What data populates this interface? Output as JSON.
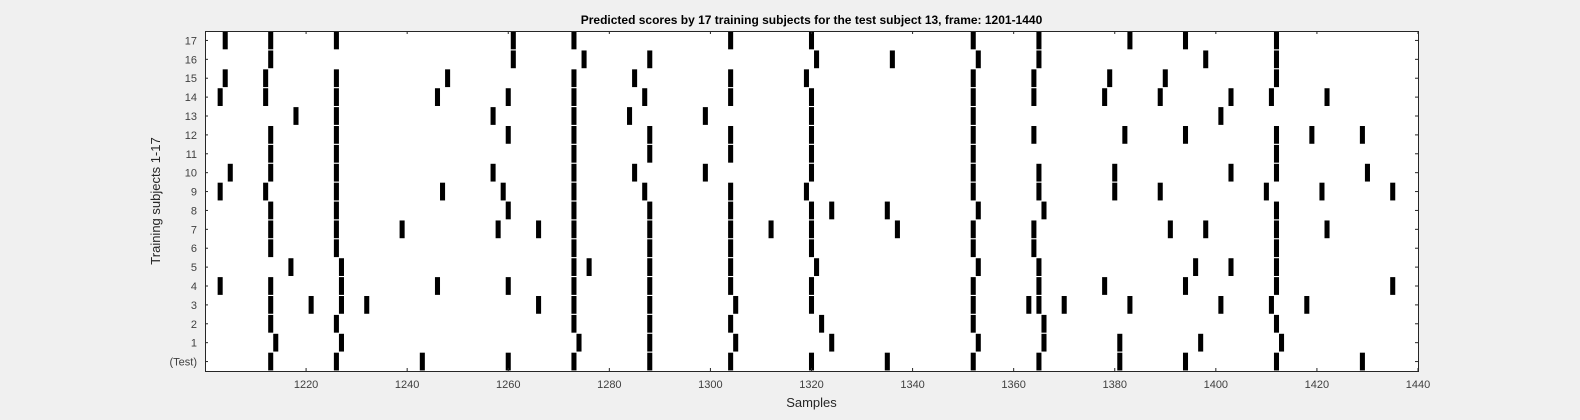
{
  "chart_data": {
    "type": "heatmap",
    "title": "Predicted scores by 17 training subjects for the test subject 13, frame: 1201-1440",
    "xlabel": "Samples",
    "ylabel": "Training subjects 1-17",
    "xlim": [
      1200,
      1440
    ],
    "x_ticks": [
      1220,
      1240,
      1260,
      1280,
      1300,
      1320,
      1340,
      1360,
      1380,
      1400,
      1420,
      1440
    ],
    "y_ticks": [
      "(Test)",
      "1",
      "2",
      "3",
      "4",
      "5",
      "6",
      "7",
      "8",
      "9",
      "10",
      "11",
      "12",
      "13",
      "14",
      "15",
      "16",
      "17"
    ],
    "grid": false,
    "colors": {
      "mark": "#000000",
      "background": "#ffffff",
      "figure": "#f0f0f0"
    },
    "rows": [
      {
        "label": "17",
        "x": [
          1204,
          1213,
          1226,
          1261,
          1273,
          1304,
          1320,
          1352,
          1365,
          1383,
          1394,
          1412
        ]
      },
      {
        "label": "16",
        "x": [
          1213,
          1261,
          1275,
          1288,
          1321,
          1336,
          1353,
          1365,
          1398,
          1412
        ]
      },
      {
        "label": "15",
        "x": [
          1204,
          1212,
          1226,
          1248,
          1273,
          1285,
          1304,
          1319,
          1352,
          1364,
          1379,
          1390,
          1412
        ]
      },
      {
        "label": "14",
        "x": [
          1203,
          1212,
          1226,
          1246,
          1260,
          1273,
          1287,
          1304,
          1320,
          1352,
          1364,
          1378,
          1389,
          1403,
          1411,
          1422
        ]
      },
      {
        "label": "13",
        "x": [
          1218,
          1226,
          1257,
          1273,
          1284,
          1299,
          1320,
          1352,
          1401
        ]
      },
      {
        "label": "12",
        "x": [
          1213,
          1226,
          1260,
          1273,
          1288,
          1304,
          1320,
          1352,
          1364,
          1382,
          1394,
          1412,
          1419,
          1429
        ]
      },
      {
        "label": "11",
        "x": [
          1213,
          1226,
          1273,
          1288,
          1304,
          1320,
          1352,
          1412
        ]
      },
      {
        "label": "10",
        "x": [
          1205,
          1213,
          1226,
          1257,
          1273,
          1285,
          1299,
          1320,
          1352,
          1365,
          1380,
          1403,
          1412,
          1430
        ]
      },
      {
        "label": "9",
        "x": [
          1203,
          1212,
          1226,
          1247,
          1259,
          1273,
          1287,
          1304,
          1319,
          1352,
          1365,
          1380,
          1389,
          1410,
          1421,
          1435
        ]
      },
      {
        "label": "8",
        "x": [
          1213,
          1226,
          1260,
          1273,
          1288,
          1304,
          1320,
          1324,
          1335,
          1353,
          1366,
          1412
        ]
      },
      {
        "label": "7",
        "x": [
          1213,
          1226,
          1239,
          1258,
          1266,
          1273,
          1288,
          1304,
          1312,
          1320,
          1337,
          1352,
          1364,
          1391,
          1398,
          1412,
          1422
        ]
      },
      {
        "label": "6",
        "x": [
          1213,
          1226,
          1273,
          1288,
          1304,
          1320,
          1352,
          1364,
          1412
        ]
      },
      {
        "label": "5",
        "x": [
          1217,
          1227,
          1273,
          1276,
          1288,
          1304,
          1321,
          1353,
          1365,
          1396,
          1403,
          1412
        ]
      },
      {
        "label": "4",
        "x": [
          1203,
          1213,
          1227,
          1246,
          1260,
          1273,
          1288,
          1304,
          1320,
          1352,
          1365,
          1378,
          1394,
          1412,
          1435
        ]
      },
      {
        "label": "3",
        "x": [
          1213,
          1221,
          1227,
          1232,
          1266,
          1273,
          1288,
          1305,
          1320,
          1352,
          1363,
          1365,
          1370,
          1383,
          1401,
          1411,
          1418
        ]
      },
      {
        "label": "2",
        "x": [
          1213,
          1226,
          1273,
          1288,
          1304,
          1322,
          1352,
          1366,
          1412
        ]
      },
      {
        "label": "1",
        "x": [
          1214,
          1227,
          1274,
          1288,
          1305,
          1324,
          1353,
          1366,
          1381,
          1397,
          1413
        ]
      },
      {
        "label": "(Test)",
        "x": [
          1213,
          1226,
          1243,
          1260,
          1273,
          1288,
          1304,
          1320,
          1335,
          1352,
          1365,
          1381,
          1394,
          1412,
          1429
        ]
      }
    ]
  }
}
